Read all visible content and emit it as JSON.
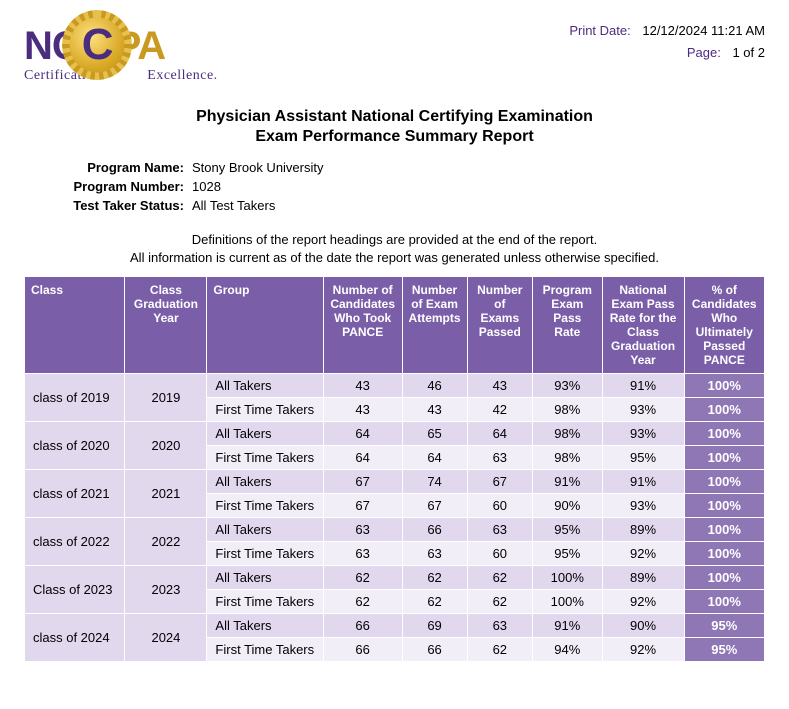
{
  "print": {
    "date_label": "Print Date:",
    "date_value": "12/12/2024 11:21 AM",
    "page_label": "Page:",
    "page_value": "1 of 2"
  },
  "logo": {
    "nc": "NC",
    "c": "C",
    "pa": "PA",
    "tagline_left": "Certification.",
    "tagline_right": "Excellence."
  },
  "title": "Physician Assistant National Certifying Examination",
  "subtitle": "Exam Performance Summary Report",
  "program": {
    "name_label": "Program Name:",
    "name_value": "Stony Brook University",
    "number_label": "Program Number:",
    "number_value": "1028",
    "status_label": "Test Taker Status:",
    "status_value": "All Test Takers"
  },
  "definitions_line1": "Definitions of the report headings are provided at the end of the report.",
  "definitions_line2": "All information is current as of the date the report was generated unless otherwise specified.",
  "columns": {
    "class": "Class",
    "year": "Class Graduation Year",
    "group": "Group",
    "candidates": "Number of Candidates Who Took PANCE",
    "attempts": "Number of Exam Attempts",
    "passed": "Number of Exams Passed",
    "prog_rate": "Program Exam Pass Rate",
    "nat_rate": "National Exam Pass Rate for the Class Graduation Year",
    "ult_pct": "% of Candidates Who Ultimately Passed PANCE"
  },
  "rows": [
    {
      "class_label": "class of 2019",
      "year": "2019",
      "groups": [
        {
          "group": "All Takers",
          "candidates": "43",
          "attempts": "46",
          "passed": "43",
          "prog_rate": "93%",
          "nat_rate": "91%",
          "ult_pct": "100%"
        },
        {
          "group": "First Time Takers",
          "candidates": "43",
          "attempts": "43",
          "passed": "42",
          "prog_rate": "98%",
          "nat_rate": "93%",
          "ult_pct": "100%"
        }
      ]
    },
    {
      "class_label": "class of 2020",
      "year": "2020",
      "groups": [
        {
          "group": "All Takers",
          "candidates": "64",
          "attempts": "65",
          "passed": "64",
          "prog_rate": "98%",
          "nat_rate": "93%",
          "ult_pct": "100%"
        },
        {
          "group": "First Time Takers",
          "candidates": "64",
          "attempts": "64",
          "passed": "63",
          "prog_rate": "98%",
          "nat_rate": "95%",
          "ult_pct": "100%"
        }
      ]
    },
    {
      "class_label": "class of 2021",
      "year": "2021",
      "groups": [
        {
          "group": "All Takers",
          "candidates": "67",
          "attempts": "74",
          "passed": "67",
          "prog_rate": "91%",
          "nat_rate": "91%",
          "ult_pct": "100%"
        },
        {
          "group": "First Time Takers",
          "candidates": "67",
          "attempts": "67",
          "passed": "60",
          "prog_rate": "90%",
          "nat_rate": "93%",
          "ult_pct": "100%"
        }
      ]
    },
    {
      "class_label": "class of 2022",
      "year": "2022",
      "groups": [
        {
          "group": "All Takers",
          "candidates": "63",
          "attempts": "66",
          "passed": "63",
          "prog_rate": "95%",
          "nat_rate": "89%",
          "ult_pct": "100%"
        },
        {
          "group": "First Time Takers",
          "candidates": "63",
          "attempts": "63",
          "passed": "60",
          "prog_rate": "95%",
          "nat_rate": "92%",
          "ult_pct": "100%"
        }
      ]
    },
    {
      "class_label": "Class of 2023",
      "year": "2023",
      "groups": [
        {
          "group": "All Takers",
          "candidates": "62",
          "attempts": "62",
          "passed": "62",
          "prog_rate": "100%",
          "nat_rate": "89%",
          "ult_pct": "100%"
        },
        {
          "group": "First Time Takers",
          "candidates": "62",
          "attempts": "62",
          "passed": "62",
          "prog_rate": "100%",
          "nat_rate": "92%",
          "ult_pct": "100%"
        }
      ]
    },
    {
      "class_label": "class of 2024",
      "year": "2024",
      "groups": [
        {
          "group": "All Takers",
          "candidates": "66",
          "attempts": "69",
          "passed": "63",
          "prog_rate": "91%",
          "nat_rate": "90%",
          "ult_pct": "95%"
        },
        {
          "group": "First Time Takers",
          "candidates": "66",
          "attempts": "66",
          "passed": "62",
          "prog_rate": "94%",
          "nat_rate": "92%",
          "ult_pct": "95%"
        }
      ]
    }
  ]
}
